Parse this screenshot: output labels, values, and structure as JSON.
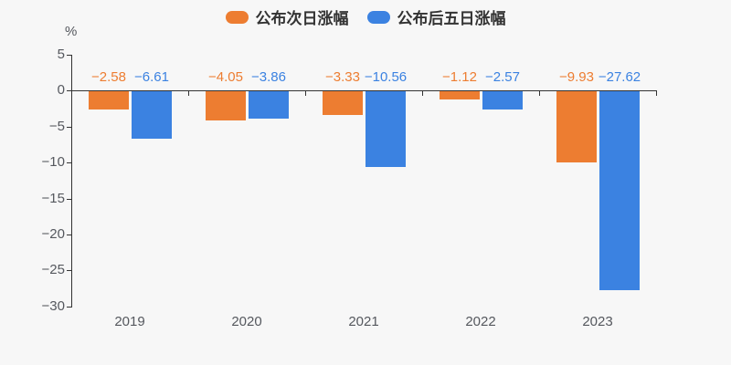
{
  "colors": {
    "background": "#f7f7f7",
    "axis": "#333333",
    "axis_label": "#55585e",
    "legend_text": "#333333",
    "series_orange": "#ed7d31",
    "series_blue": "#3b82e1"
  },
  "unit_label": "%",
  "legend": {
    "items": [
      {
        "label": "公布次日涨幅",
        "color": "#ed7d31"
      },
      {
        "label": "公布后五日涨幅",
        "color": "#3b82e1"
      }
    ]
  },
  "chart_data": {
    "type": "bar",
    "title": "",
    "xlabel": "",
    "ylabel": "%",
    "categories": [
      "2019",
      "2020",
      "2021",
      "2022",
      "2023"
    ],
    "series": [
      {
        "name": "公布次日涨幅",
        "color": "#ed7d31",
        "values": [
          -2.58,
          -4.05,
          -3.33,
          -1.12,
          -9.93
        ]
      },
      {
        "name": "公布后五日涨幅",
        "color": "#3b82e1",
        "values": [
          -6.61,
          -3.86,
          -10.56,
          -2.57,
          -27.62
        ]
      }
    ],
    "ylim": [
      -30,
      5
    ],
    "y_ticks": [
      5,
      0,
      -5,
      -10,
      -15,
      -20,
      -25,
      -30
    ],
    "legend_position": "top",
    "grid": false,
    "data_labels": true,
    "data_label_position": "above-zero-line"
  }
}
